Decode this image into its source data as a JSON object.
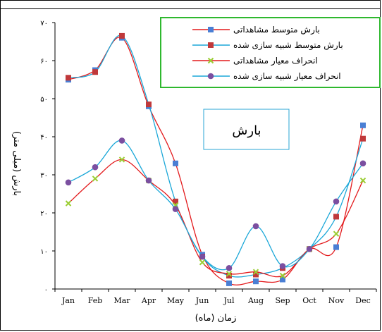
{
  "chart_data": {
    "type": "line",
    "title": "",
    "callout": "بارش",
    "xlabel": "زمان (ماه)",
    "ylabel": "بارش (میلی متر)",
    "categories": [
      "Jan",
      "Feb",
      "Mar",
      "Apr",
      "May",
      "Jun",
      "Jul",
      "Aug",
      "Sep",
      "Oct",
      "Nov",
      "Dec"
    ],
    "ylim": [
      0,
      70
    ],
    "yticks": [
      0,
      10,
      20,
      30,
      40,
      50,
      60,
      70
    ],
    "ytick_labels": [
      "۰",
      "۱۰",
      "۲۰",
      "۳۰",
      "۴۰",
      "۵۰",
      "۶۰",
      "۷۰"
    ],
    "legend_position": "top-right",
    "grid": false,
    "series": [
      {
        "name": "بارش متوسط مشاهداتی",
        "color": "#e31a1c",
        "marker": "square",
        "marker_color": "#4a7fd4",
        "values": [
          55,
          57.5,
          66,
          48,
          33,
          9,
          1.5,
          2,
          2.5,
          10.5,
          11,
          43
        ]
      },
      {
        "name": "بارش متوسط شبیه سازی شده",
        "color": "#1aa7d8",
        "marker": "square",
        "marker_color": "#c0393b",
        "values": [
          55.5,
          57,
          66.5,
          48.5,
          23,
          8.5,
          3.5,
          3.8,
          5.5,
          10.5,
          19,
          39.5
        ]
      },
      {
        "name": "انحراف معیار مشاهداتی",
        "color": "#e31a1c",
        "marker": "x",
        "marker_color": "#9acd32",
        "values": [
          22.5,
          29,
          34,
          28.5,
          22,
          7,
          4,
          4.5,
          3.5,
          10.5,
          14.5,
          28.5
        ]
      },
      {
        "name": "انحراف معیار شبیه سازی شده",
        "color": "#1aa7d8",
        "marker": "circle",
        "marker_color": "#7b4fa0",
        "values": [
          28,
          32,
          39,
          28.5,
          21,
          8.5,
          5.5,
          16.5,
          6,
          10.5,
          23,
          33
        ]
      }
    ]
  }
}
